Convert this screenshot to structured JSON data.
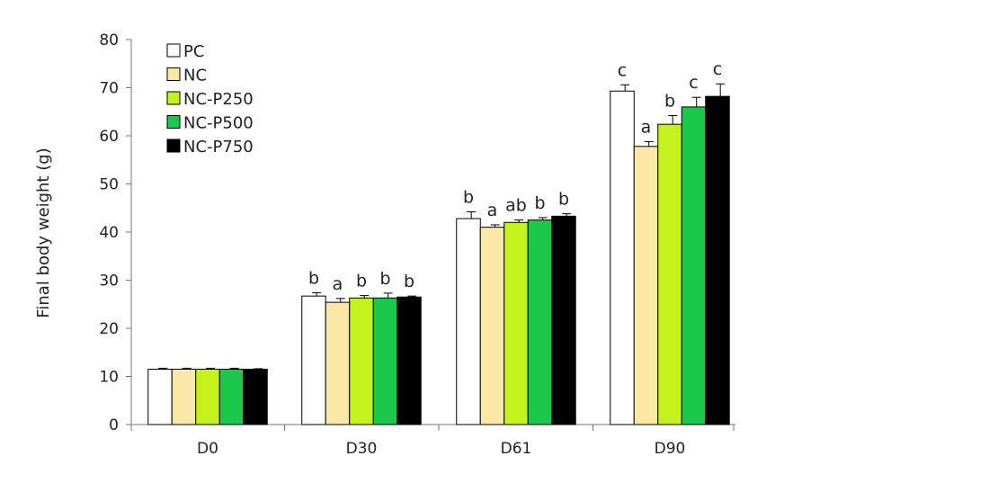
{
  "chart_data": {
    "type": "bar",
    "title": "",
    "xlabel": "",
    "ylabel": "Final body weight (g)",
    "ylim": [
      0,
      80
    ],
    "yticks": [
      0,
      10,
      20,
      30,
      40,
      50,
      60,
      70,
      80
    ],
    "grid": false,
    "legend_position": "top-left",
    "categories": [
      "D0",
      "D30",
      "D61",
      "D90"
    ],
    "series": [
      {
        "name": "PC",
        "color": "#ffffff",
        "values": [
          11.5,
          26.7,
          42.8,
          69.3
        ],
        "errors": [
          0.2,
          0.7,
          1.4,
          1.3
        ],
        "labels": [
          "",
          "b",
          "b",
          "c"
        ]
      },
      {
        "name": "NC",
        "color": "#fbe8a6",
        "values": [
          11.5,
          25.4,
          41.0,
          57.8
        ],
        "errors": [
          0.2,
          0.8,
          0.5,
          1.0
        ],
        "labels": [
          "",
          "a",
          "a",
          "a"
        ]
      },
      {
        "name": "NC-P250",
        "color": "#c4f21d",
        "values": [
          11.5,
          26.3,
          42.0,
          62.4
        ],
        "errors": [
          0.2,
          0.5,
          0.5,
          1.8
        ],
        "labels": [
          "",
          "b",
          "ab",
          "b"
        ]
      },
      {
        "name": "NC-P500",
        "color": "#1ac84a",
        "values": [
          11.5,
          26.3,
          42.5,
          66.0
        ],
        "errors": [
          0.2,
          1.0,
          0.5,
          2.0
        ],
        "labels": [
          "",
          "b",
          "b",
          "c"
        ]
      },
      {
        "name": "NC-P750",
        "color": "#000000",
        "values": [
          11.5,
          26.5,
          43.3,
          68.2
        ],
        "errors": [
          0.1,
          0.2,
          0.5,
          2.6
        ],
        "labels": [
          "",
          "b",
          "b",
          "c"
        ]
      }
    ]
  }
}
